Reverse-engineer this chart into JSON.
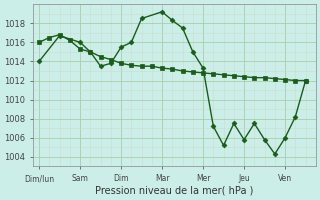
{
  "xlabel": "Pression niveau de la mer( hPa )",
  "bg_color": "#cceee8",
  "line_color": "#1a5c1a",
  "grid_major_color": "#aaccaa",
  "grid_minor_color": "#ccddcc",
  "ylim": [
    1003,
    1020
  ],
  "yticks": [
    1004,
    1006,
    1008,
    1010,
    1012,
    1014,
    1016,
    1018
  ],
  "day_positions": [
    0,
    1,
    2,
    3,
    4,
    5,
    6
  ],
  "day_labels": [
    "Dim/lun",
    "Sam",
    "Dim",
    "Mar",
    "Mer",
    "Jeu",
    "Ven"
  ],
  "line_a_x": [
    0,
    0.25,
    0.5,
    0.75,
    1.0,
    1.25,
    1.5,
    1.75,
    2.0,
    2.25,
    2.5,
    2.75,
    3.0,
    3.25,
    3.5,
    3.75,
    4.0,
    4.25,
    4.5,
    4.75,
    5.0,
    5.25,
    5.5,
    5.75,
    6.0,
    6.25,
    6.5
  ],
  "line_a_y": [
    1016.0,
    1016.5,
    1016.8,
    1016.2,
    1015.3,
    1015.0,
    1014.5,
    1014.2,
    1013.8,
    1013.6,
    1013.5,
    1013.5,
    1013.3,
    1013.2,
    1013.0,
    1012.9,
    1012.8,
    1012.7,
    1012.6,
    1012.5,
    1012.4,
    1012.3,
    1012.3,
    1012.2,
    1012.1,
    1012.0,
    1012.0
  ],
  "line_b_x": [
    0,
    0.5,
    1.0,
    1.25,
    1.5,
    1.75,
    2.0,
    2.25,
    2.5,
    3.0,
    3.25,
    3.5,
    3.75,
    4.0,
    4.25,
    4.5,
    4.75,
    5.0,
    5.25,
    5.5,
    5.75,
    6.0,
    6.25,
    6.5
  ],
  "line_b_y": [
    1014.0,
    1016.7,
    1016.0,
    1015.0,
    1013.5,
    1013.8,
    1015.5,
    1016.0,
    1018.5,
    1019.2,
    1018.3,
    1017.5,
    1015.0,
    1013.3,
    1007.2,
    1005.2,
    1007.5,
    1005.8,
    1007.5,
    1005.8,
    1004.3,
    1006.0,
    1008.2,
    1012.0
  ]
}
